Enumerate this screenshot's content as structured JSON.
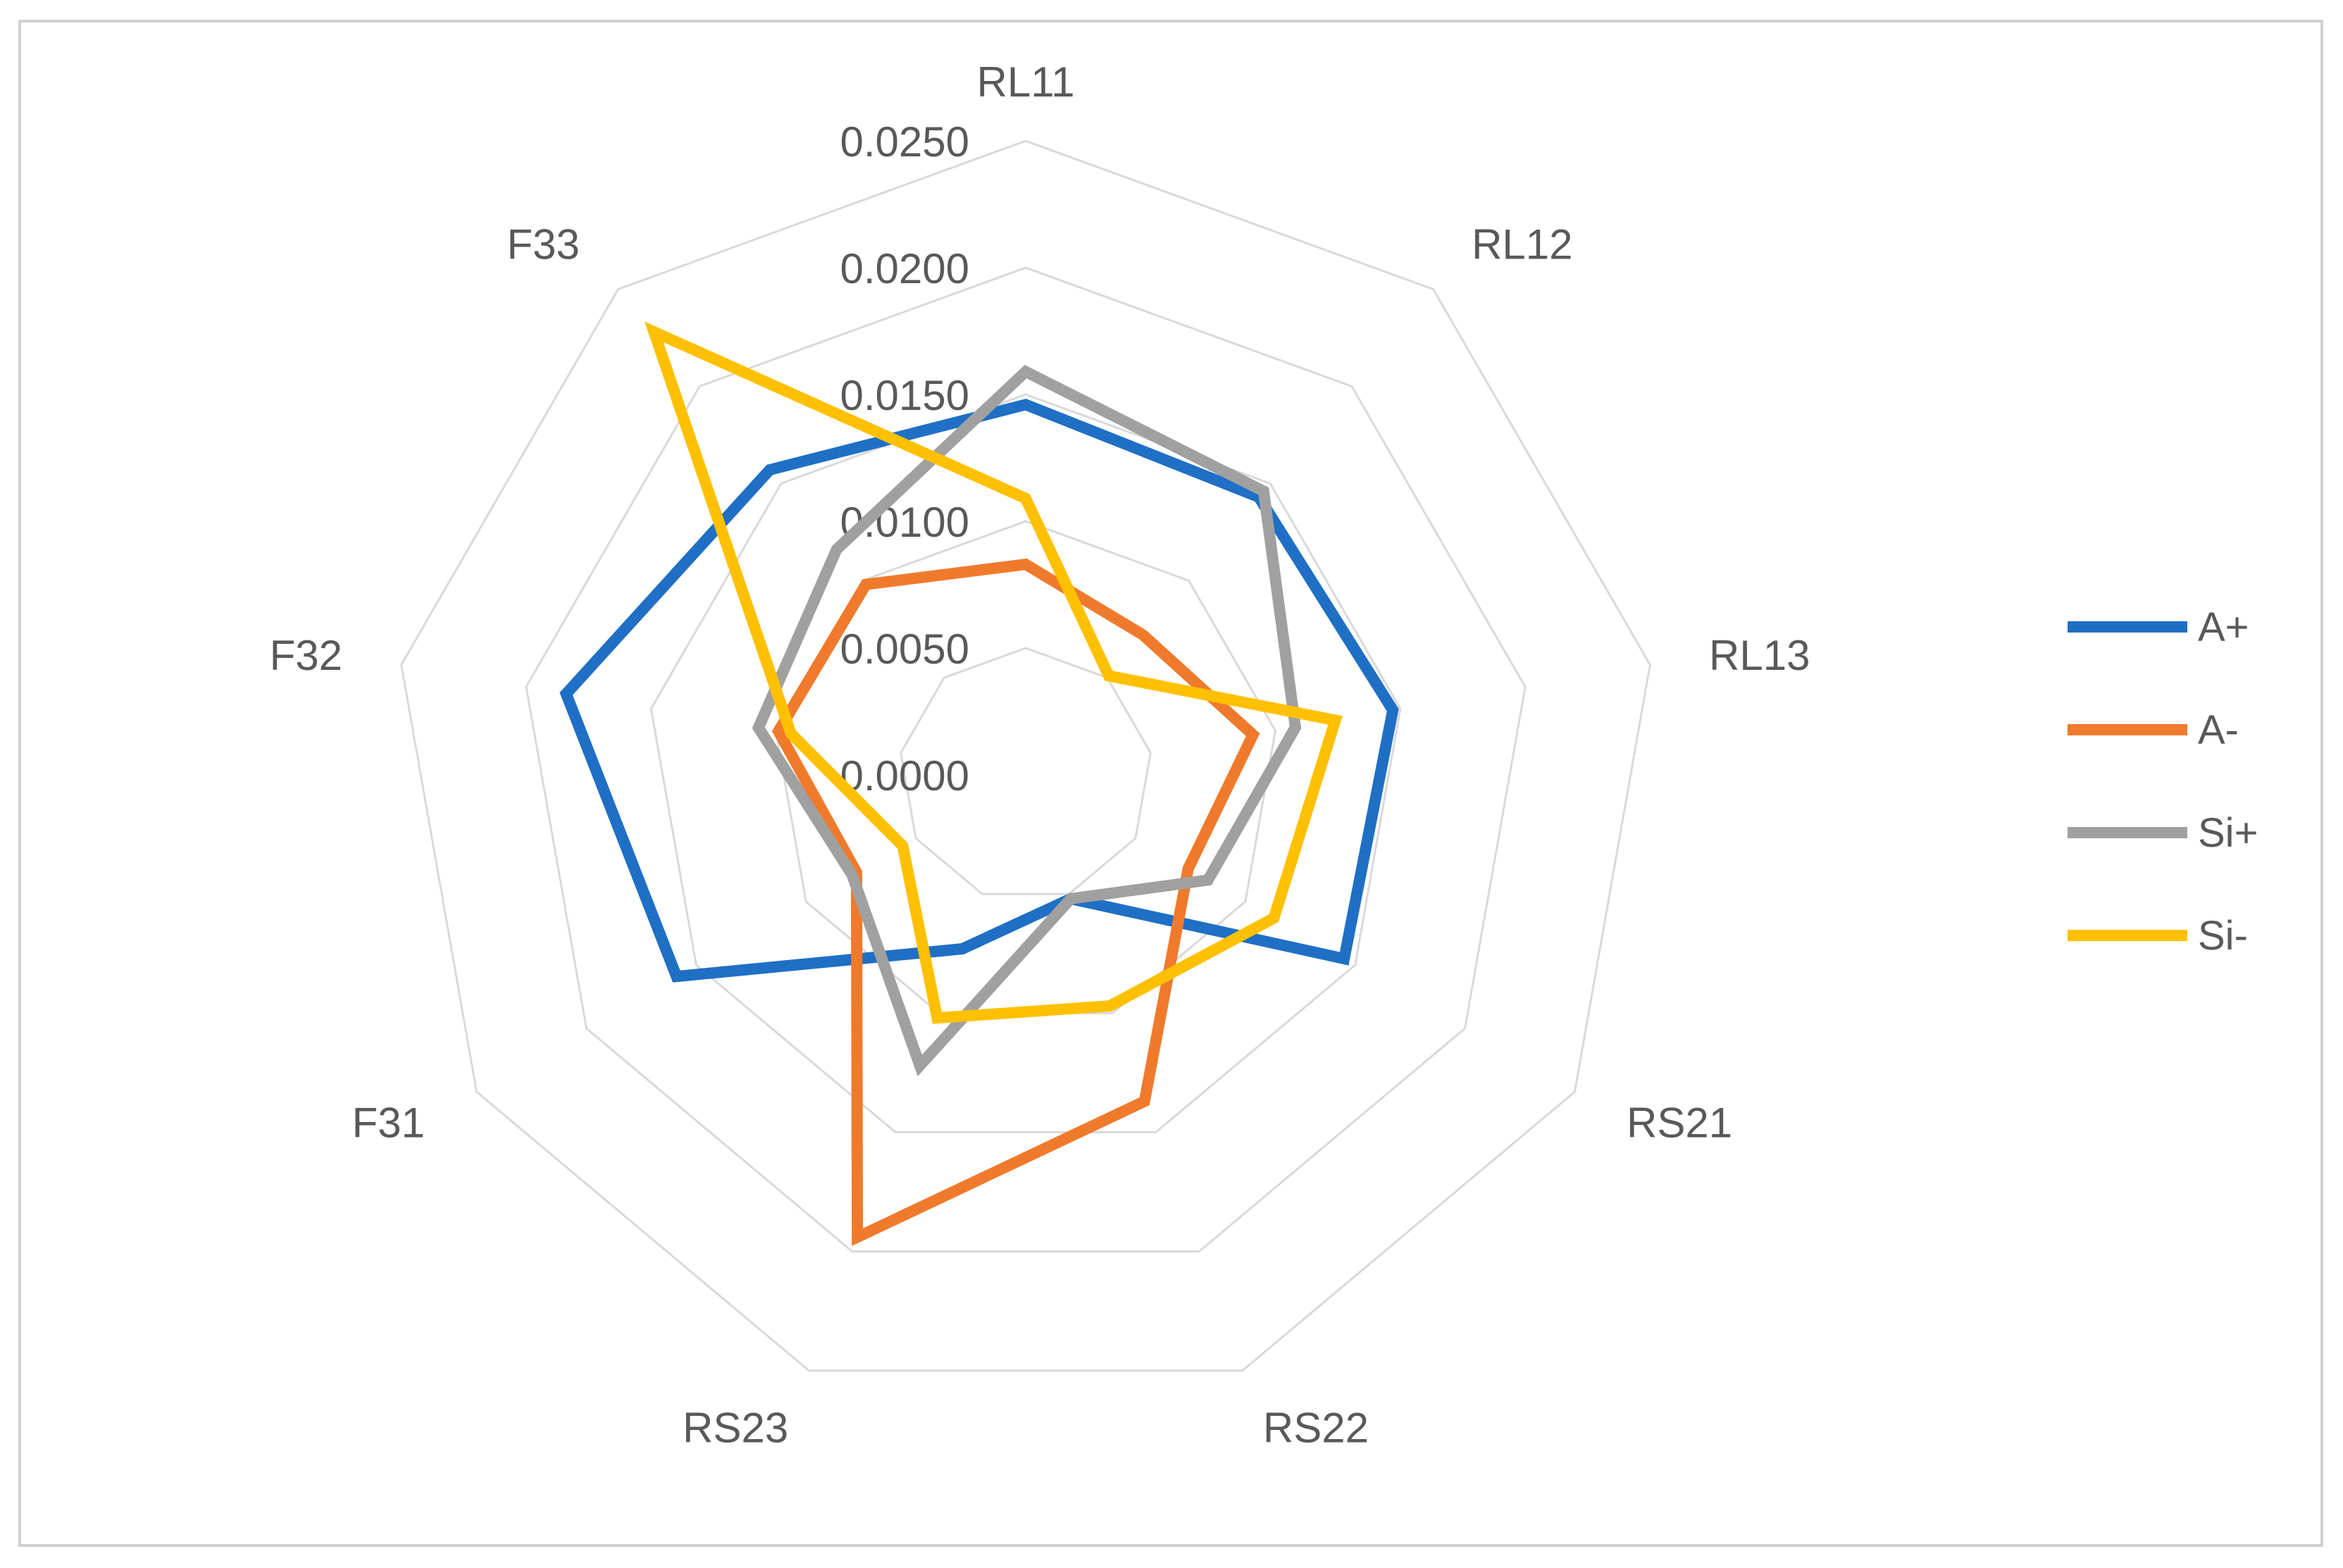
{
  "chart_data": {
    "type": "radar",
    "title": "",
    "categories": [
      "RL11",
      "RL12",
      "RL13",
      "RS21",
      "RS22",
      "RS23",
      "F31",
      "F32",
      "F33"
    ],
    "axis": {
      "min": 0.0,
      "max": 0.025,
      "step": 0.005,
      "tick_labels": [
        "0.0000",
        "0.0050",
        "0.0100",
        "0.0150",
        "0.0200",
        "0.0250"
      ]
    },
    "grid": true,
    "legend_position": "right",
    "series": [
      {
        "name": "A+",
        "color": "#1F6FC5",
        "values": [
          0.0146,
          0.0143,
          0.0147,
          0.0145,
          0.0052,
          0.0073,
          0.0159,
          0.0184,
          0.0157
        ]
      },
      {
        "name": "A-",
        "color": "#F07A2C",
        "values": [
          0.0083,
          0.0072,
          0.0091,
          0.0074,
          0.0137,
          0.0194,
          0.0077,
          0.0099,
          0.0098
        ]
      },
      {
        "name": "Si+",
        "color": "#A0A0A0",
        "values": [
          0.0159,
          0.0146,
          0.0108,
          0.0083,
          0.0052,
          0.0122,
          0.0079,
          0.0107,
          0.0116
        ]
      },
      {
        "name": "Si-",
        "color": "#FFC000",
        "values": [
          0.0109,
          0.0051,
          0.0124,
          0.0113,
          0.0097,
          0.0102,
          0.0056,
          0.0094,
          0.0228
        ]
      }
    ]
  }
}
